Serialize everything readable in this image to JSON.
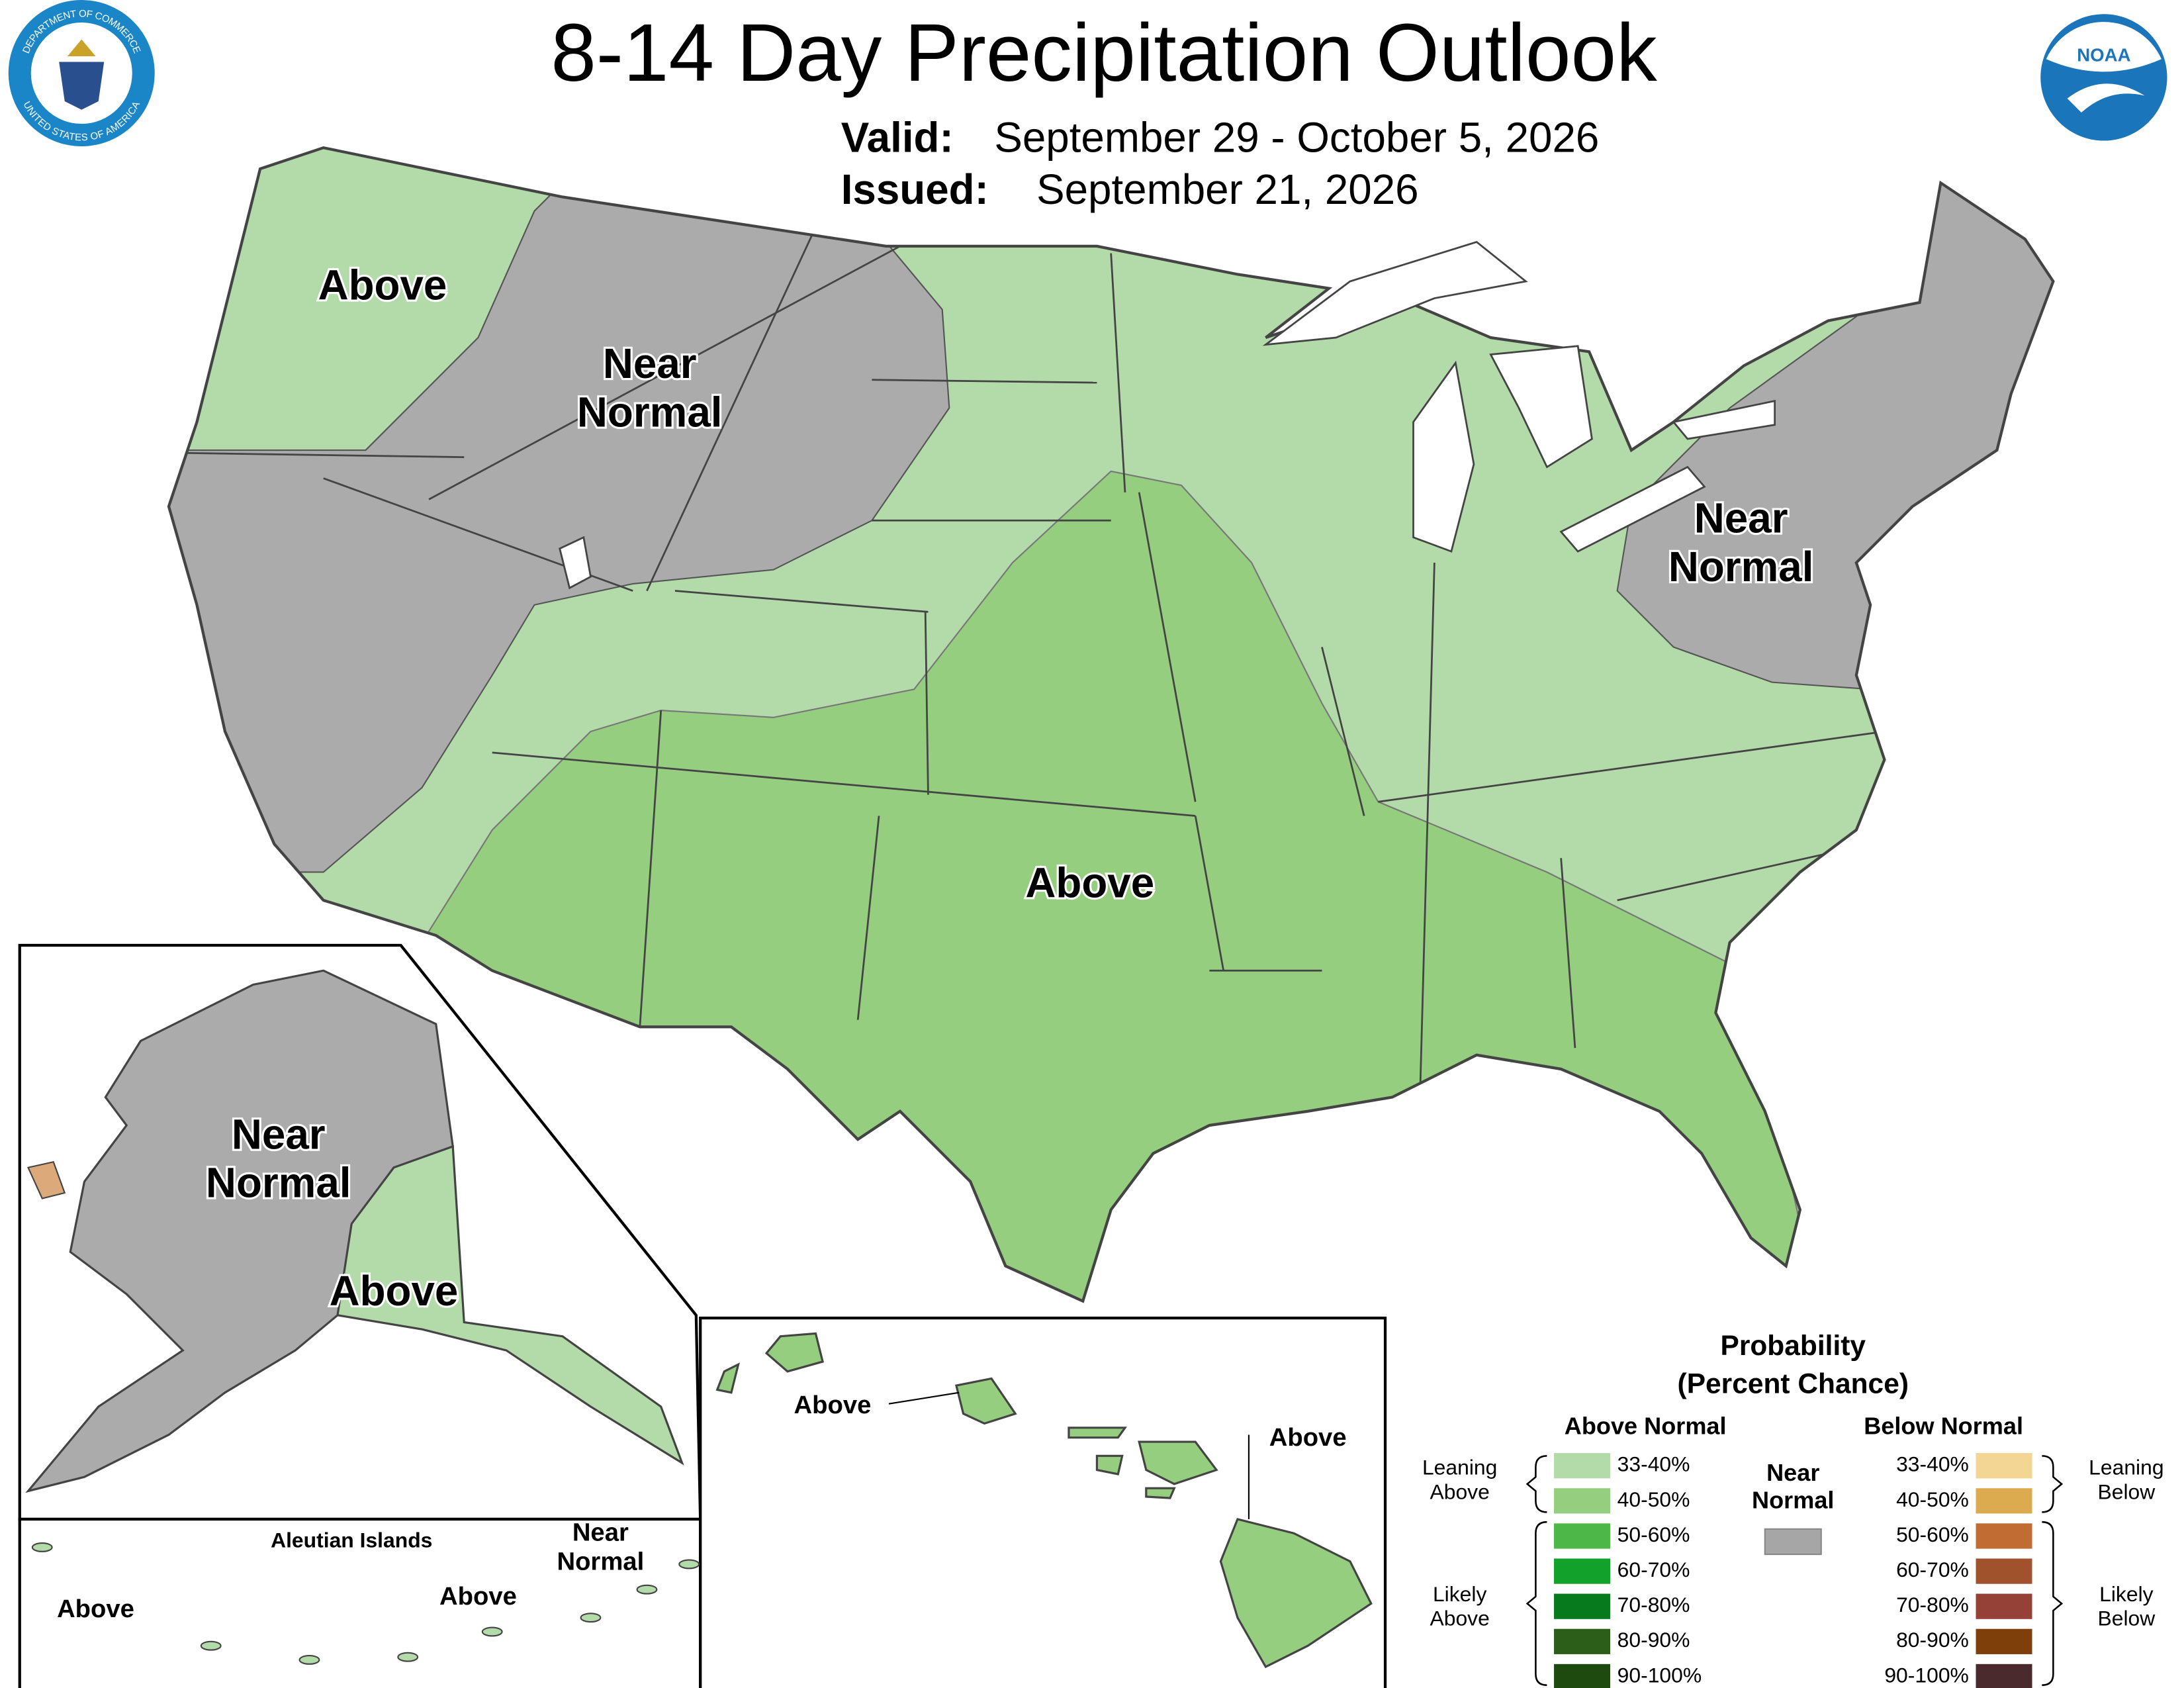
{
  "header": {
    "title": "8-14 Day Precipitation Outlook",
    "valid_label": "Valid:",
    "valid": "September 29 - October 5, 2026",
    "issued_label": "Issued:",
    "issued": "September 21, 2026"
  },
  "logos": {
    "seal_top": "DEPARTMENT OF COMMERCE",
    "seal_bottom": "UNITED STATES OF AMERICA",
    "noaa": "NOAA"
  },
  "colors": {
    "leaning_above": "#b3dba9",
    "above": "#94ce7e",
    "near_normal": "#ababab"
  },
  "conus": {
    "northwest": "Above",
    "west": [
      "Near",
      "Normal"
    ],
    "northeast": [
      "Near",
      "Normal"
    ],
    "central": "Above"
  },
  "alaska": {
    "main": [
      "Near",
      "Normal"
    ],
    "southeast": "Above"
  },
  "aleutians": {
    "title": "Aleutian Islands",
    "west": "Above",
    "east": "Above",
    "far_east": [
      "Near",
      "Normal"
    ]
  },
  "hawaii": {
    "west": "Above",
    "east": "Above"
  },
  "legend": {
    "title": "Probability",
    "subtitle": "(Percent Chance)",
    "above_heading": "Above Normal",
    "below_heading": "Below Normal",
    "near_heading": [
      "Near",
      "Normal"
    ],
    "near_color": "#a6a6a6",
    "leaning_above": [
      "Leaning",
      "Above"
    ],
    "likely_above": [
      "Likely",
      "Above"
    ],
    "leaning_below": [
      "Leaning",
      "Below"
    ],
    "likely_below": [
      "Likely",
      "Below"
    ],
    "above": [
      {
        "label": "33-40%",
        "color": "#b3dba9"
      },
      {
        "label": "40-50%",
        "color": "#94ce7e"
      },
      {
        "label": "50-60%",
        "color": "#4db848"
      },
      {
        "label": "60-70%",
        "color": "#12a12a"
      },
      {
        "label": "70-80%",
        "color": "#077a1d"
      },
      {
        "label": "80-90%",
        "color": "#2c5e1a"
      },
      {
        "label": "90-100%",
        "color": "#1e4a0f"
      }
    ],
    "below": [
      {
        "label": "33-40%",
        "color": "#f3d594"
      },
      {
        "label": "40-50%",
        "color": "#dcaa4f"
      },
      {
        "label": "50-60%",
        "color": "#c06c33"
      },
      {
        "label": "60-70%",
        "color": "#a0522d"
      },
      {
        "label": "70-80%",
        "color": "#964138"
      },
      {
        "label": "80-90%",
        "color": "#7f3f0a"
      },
      {
        "label": "90-100%",
        "color": "#4a2a2c"
      }
    ]
  }
}
